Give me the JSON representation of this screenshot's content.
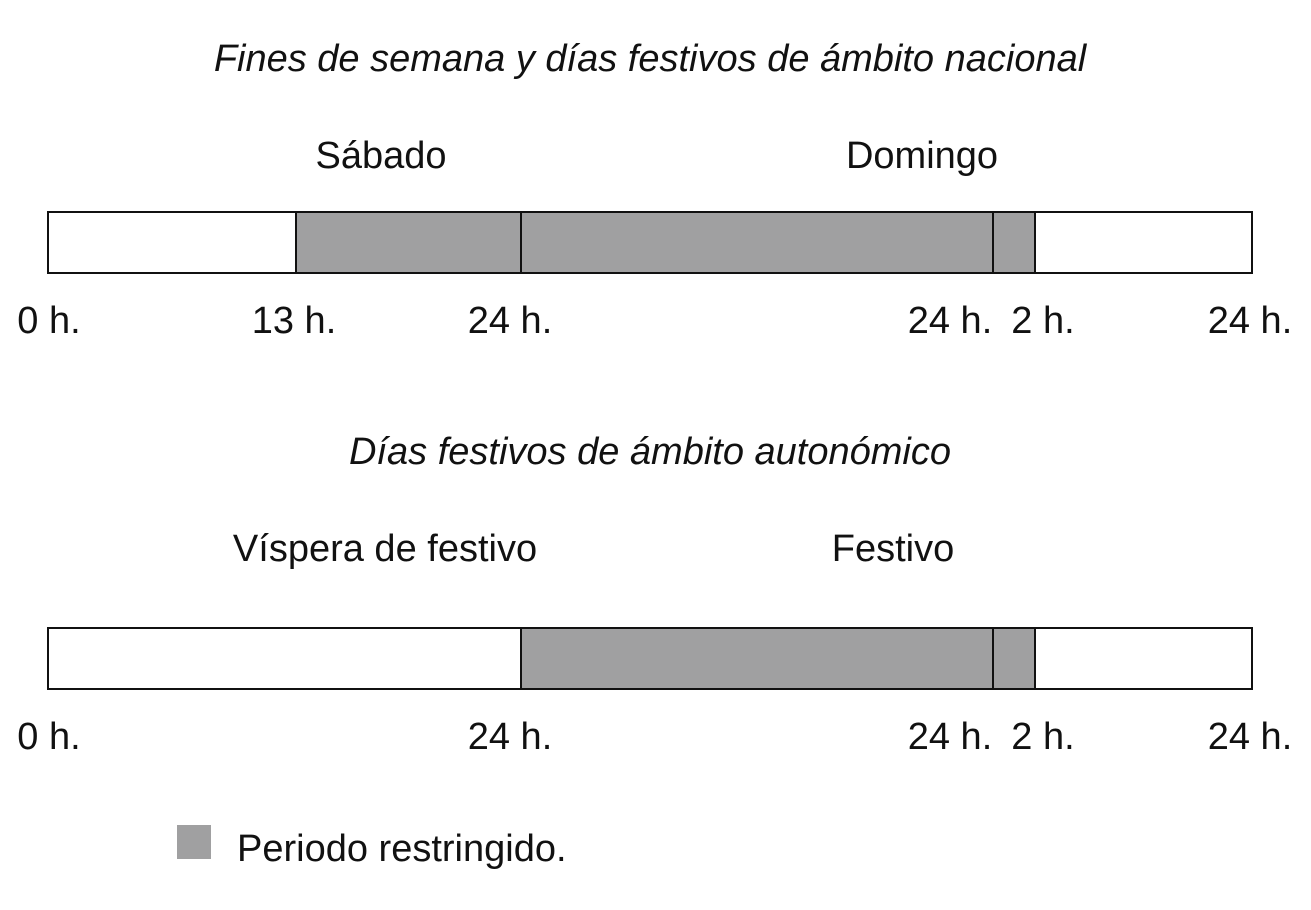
{
  "colors": {
    "restricted": "#a0a0a1",
    "free": "#ffffff",
    "border": "#111111"
  },
  "panels": [
    {
      "title": "Fines de semana y días festivos de ámbito nacional",
      "days": [
        "Sábado",
        "Domingo"
      ],
      "ticks": [
        "0 h.",
        "13 h.",
        "24 h.",
        "24 h.",
        "2 h.",
        "24 h."
      ],
      "restricted_periods": [
        {
          "from": "13 h. (Sábado)",
          "to": "2 h. (día siguiente)"
        }
      ]
    },
    {
      "title": "Días festivos de ámbito autonómico",
      "days": [
        "Víspera de festivo",
        "Festivo"
      ],
      "ticks": [
        "0 h.",
        "24 h.",
        "24 h.",
        "2 h.",
        "24 h."
      ],
      "restricted_periods": [
        {
          "from": "24 h. (Víspera de festivo)",
          "to": "2 h. (día siguiente)"
        }
      ]
    }
  ],
  "legend": {
    "label": "Periodo restringido."
  }
}
